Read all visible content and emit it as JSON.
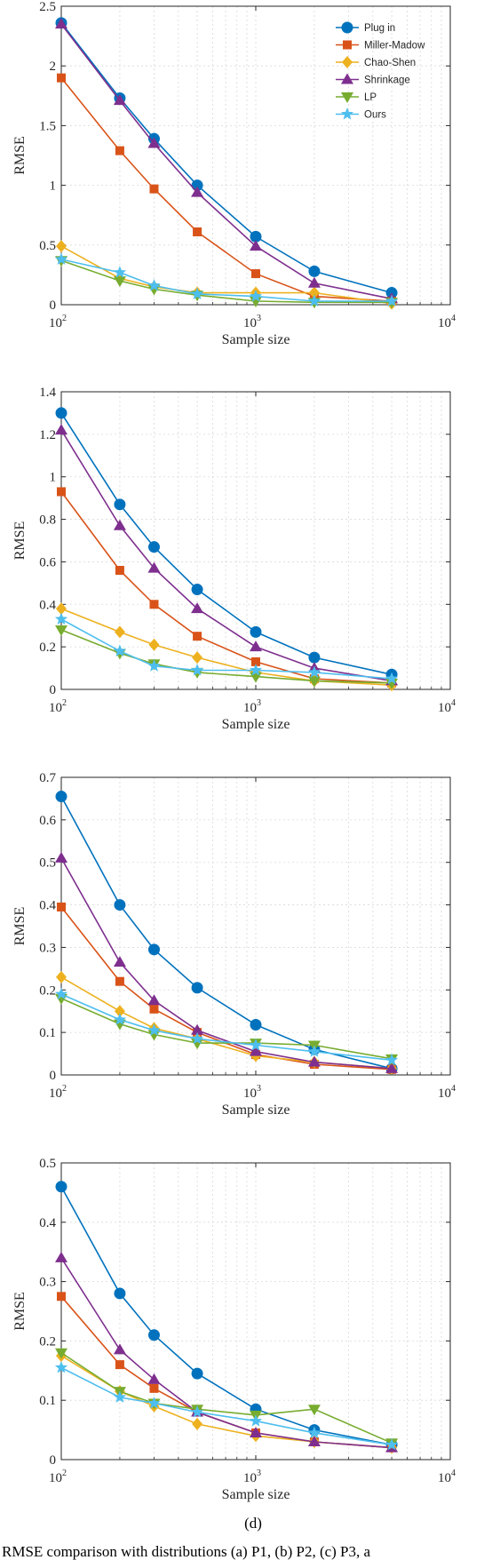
{
  "chart_data": [
    {
      "type": "line",
      "xscale": "log",
      "x": [
        100,
        200,
        300,
        500,
        1000,
        2000,
        5000
      ],
      "xlim": [
        100,
        10000
      ],
      "ylim": [
        0,
        2.5
      ],
      "yticks": [
        0,
        0.5,
        1,
        1.5,
        2,
        2.5
      ],
      "ytick_labels": [
        "0",
        "0.5",
        "1",
        "1.5",
        "2",
        "2.5"
      ],
      "xtick_labels": [
        {
          "base": "10",
          "exp": "2"
        },
        {
          "base": "10",
          "exp": "3"
        },
        {
          "base": "10",
          "exp": "4"
        }
      ],
      "xlabel": "Sample size",
      "ylabel": "RMSE",
      "legend": "top-right",
      "grid": "dotted",
      "panel_label": "",
      "series": [
        {
          "name": "Plug in",
          "color": "#0072BD",
          "marker": "circle",
          "values": [
            2.36,
            1.73,
            1.39,
            1.0,
            0.57,
            0.28,
            0.1
          ]
        },
        {
          "name": "Miller-Madow",
          "color": "#D95319",
          "marker": "square",
          "values": [
            1.9,
            1.29,
            0.97,
            0.61,
            0.26,
            0.07,
            0.03
          ]
        },
        {
          "name": "Chao-Shen",
          "color": "#EDB120",
          "marker": "diamond",
          "values": [
            0.49,
            0.22,
            0.15,
            0.1,
            0.1,
            0.1,
            0.01
          ]
        },
        {
          "name": "Shrinkage",
          "color": "#7E2F8E",
          "marker": "triangle-up",
          "values": [
            2.35,
            1.71,
            1.35,
            0.94,
            0.49,
            0.18,
            0.05
          ]
        },
        {
          "name": "LP",
          "color": "#77AC30",
          "marker": "triangle-down",
          "values": [
            0.37,
            0.2,
            0.13,
            0.08,
            0.03,
            0.02,
            0.02
          ]
        },
        {
          "name": "Ours",
          "color": "#4DBEEE",
          "marker": "star",
          "values": [
            0.38,
            0.27,
            0.16,
            0.09,
            0.07,
            0.03,
            0.03
          ]
        }
      ]
    },
    {
      "type": "line",
      "xscale": "log",
      "x": [
        100,
        200,
        300,
        500,
        1000,
        2000,
        5000
      ],
      "xlim": [
        100,
        10000
      ],
      "ylim": [
        0,
        1.4
      ],
      "yticks": [
        0,
        0.2,
        0.4,
        0.6,
        0.8,
        1,
        1.2,
        1.4
      ],
      "ytick_labels": [
        "0",
        "0.2",
        "0.4",
        "0.6",
        "0.8",
        "1",
        "1.2",
        "1.4"
      ],
      "xtick_labels": [
        {
          "base": "10",
          "exp": "2"
        },
        {
          "base": "10",
          "exp": "3"
        },
        {
          "base": "10",
          "exp": "4"
        }
      ],
      "xlabel": "Sample size",
      "ylabel": "RMSE",
      "grid": "dotted",
      "panel_label": "",
      "series": [
        {
          "name": "Plug in",
          "color": "#0072BD",
          "marker": "circle",
          "values": [
            1.3,
            0.87,
            0.67,
            0.47,
            0.27,
            0.15,
            0.07
          ]
        },
        {
          "name": "Miller-Madow",
          "color": "#D95319",
          "marker": "square",
          "values": [
            0.93,
            0.56,
            0.4,
            0.25,
            0.13,
            0.05,
            0.03
          ]
        },
        {
          "name": "Chao-Shen",
          "color": "#EDB120",
          "marker": "diamond",
          "values": [
            0.38,
            0.27,
            0.21,
            0.15,
            0.08,
            0.04,
            0.02
          ]
        },
        {
          "name": "Shrinkage",
          "color": "#7E2F8E",
          "marker": "triangle-up",
          "values": [
            1.22,
            0.77,
            0.57,
            0.38,
            0.2,
            0.1,
            0.04
          ]
        },
        {
          "name": "LP",
          "color": "#77AC30",
          "marker": "triangle-down",
          "values": [
            0.28,
            0.17,
            0.12,
            0.08,
            0.06,
            0.04,
            0.03
          ]
        },
        {
          "name": "Ours",
          "color": "#4DBEEE",
          "marker": "star",
          "values": [
            0.33,
            0.18,
            0.11,
            0.09,
            0.09,
            0.08,
            0.05
          ]
        }
      ]
    },
    {
      "type": "line",
      "xscale": "log",
      "x": [
        100,
        200,
        300,
        500,
        1000,
        2000,
        5000
      ],
      "xlim": [
        100,
        10000
      ],
      "ylim": [
        0,
        0.7
      ],
      "yticks": [
        0,
        0.1,
        0.2,
        0.3,
        0.4,
        0.5,
        0.6,
        0.7
      ],
      "ytick_labels": [
        "0",
        "0.1",
        "0.2",
        "0.3",
        "0.4",
        "0.5",
        "0.6",
        "0.7"
      ],
      "xtick_labels": [
        {
          "base": "10",
          "exp": "2"
        },
        {
          "base": "10",
          "exp": "3"
        },
        {
          "base": "10",
          "exp": "4"
        }
      ],
      "xlabel": "Sample size",
      "ylabel": "RMSE",
      "grid": "dotted",
      "panel_label": "",
      "series": [
        {
          "name": "Plug in",
          "color": "#0072BD",
          "marker": "circle",
          "values": [
            0.655,
            0.4,
            0.295,
            0.205,
            0.118,
            0.06,
            0.015
          ]
        },
        {
          "name": "Miller-Madow",
          "color": "#D95319",
          "marker": "square",
          "values": [
            0.395,
            0.22,
            0.155,
            0.1,
            0.048,
            0.025,
            0.013
          ]
        },
        {
          "name": "Chao-Shen",
          "color": "#EDB120",
          "marker": "diamond",
          "values": [
            0.23,
            0.15,
            0.11,
            0.085,
            0.045,
            0.03,
            0.015
          ]
        },
        {
          "name": "Shrinkage",
          "color": "#7E2F8E",
          "marker": "triangle-up",
          "values": [
            0.51,
            0.265,
            0.175,
            0.105,
            0.055,
            0.03,
            0.015
          ]
        },
        {
          "name": "LP",
          "color": "#77AC30",
          "marker": "triangle-down",
          "values": [
            0.18,
            0.12,
            0.095,
            0.075,
            0.075,
            0.07,
            0.038
          ]
        },
        {
          "name": "Ours",
          "color": "#4DBEEE",
          "marker": "star",
          "values": [
            0.19,
            0.13,
            0.105,
            0.085,
            0.07,
            0.055,
            0.035
          ]
        }
      ]
    },
    {
      "type": "line",
      "xscale": "log",
      "x": [
        100,
        200,
        300,
        500,
        1000,
        2000,
        5000
      ],
      "xlim": [
        100,
        10000
      ],
      "ylim": [
        0,
        0.5
      ],
      "yticks": [
        0,
        0.1,
        0.2,
        0.3,
        0.4,
        0.5
      ],
      "ytick_labels": [
        "0",
        "0.1",
        "0.2",
        "0.3",
        "0.4",
        "0.5"
      ],
      "xtick_labels": [
        {
          "base": "10",
          "exp": "2"
        },
        {
          "base": "10",
          "exp": "3"
        },
        {
          "base": "10",
          "exp": "4"
        }
      ],
      "xlabel": "Sample size",
      "ylabel": "RMSE",
      "grid": "dotted",
      "panel_label": "(d)",
      "series": [
        {
          "name": "Plug in",
          "color": "#0072BD",
          "marker": "circle",
          "values": [
            0.46,
            0.28,
            0.21,
            0.145,
            0.085,
            0.05,
            0.025
          ]
        },
        {
          "name": "Miller-Madow",
          "color": "#D95319",
          "marker": "square",
          "values": [
            0.275,
            0.16,
            0.12,
            0.08,
            0.045,
            0.03,
            0.02
          ]
        },
        {
          "name": "Chao-Shen",
          "color": "#EDB120",
          "marker": "diamond",
          "values": [
            0.175,
            0.115,
            0.09,
            0.06,
            0.04,
            0.03,
            0.02
          ]
        },
        {
          "name": "Shrinkage",
          "color": "#7E2F8E",
          "marker": "triangle-up",
          "values": [
            0.34,
            0.185,
            0.135,
            0.08,
            0.045,
            0.03,
            0.02
          ]
        },
        {
          "name": "LP",
          "color": "#77AC30",
          "marker": "triangle-down",
          "values": [
            0.18,
            0.115,
            0.095,
            0.085,
            0.075,
            0.085,
            0.028
          ]
        },
        {
          "name": "Ours",
          "color": "#4DBEEE",
          "marker": "star",
          "values": [
            0.155,
            0.105,
            0.095,
            0.08,
            0.065,
            0.045,
            0.025
          ]
        }
      ]
    }
  ],
  "caption": "RMSE comparison with distributions (a) P1, (b) P2, (c) P3, a"
}
